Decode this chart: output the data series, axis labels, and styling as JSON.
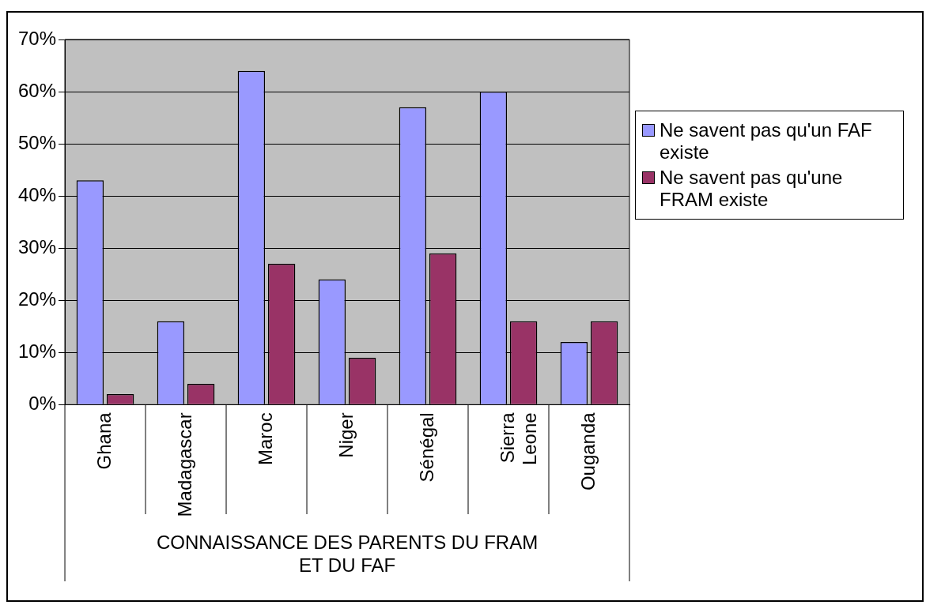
{
  "chart_data": {
    "type": "bar",
    "xlabel": [
      "CONNAISSANCE DES PARENTS DU FRAM",
      "ET DU FAF"
    ],
    "categories": [
      "Ghana",
      "Madagascar",
      "Maroc",
      "Niger",
      "Sénégal",
      "Sierra Leone",
      "Ouganda"
    ],
    "series": [
      {
        "name": "Ne savent pas qu'un FAF existe",
        "color": "#9999ff",
        "values": [
          43,
          16,
          64,
          24,
          57,
          60,
          12
        ]
      },
      {
        "name": "Ne savent pas qu'une FRAM existe",
        "color": "#993366",
        "values": [
          2,
          4,
          27,
          9,
          29,
          16,
          16
        ]
      }
    ],
    "ylim": [
      0,
      70
    ],
    "yticks": [
      {
        "value": 0,
        "label": "0%"
      },
      {
        "value": 10,
        "label": "10%"
      },
      {
        "value": 20,
        "label": "20%"
      },
      {
        "value": 30,
        "label": "30%"
      },
      {
        "value": 40,
        "label": "40%"
      },
      {
        "value": 50,
        "label": "50%"
      },
      {
        "value": 60,
        "label": "60%"
      },
      {
        "value": 70,
        "label": "70%"
      }
    ],
    "grid": "y",
    "legend": "right"
  }
}
